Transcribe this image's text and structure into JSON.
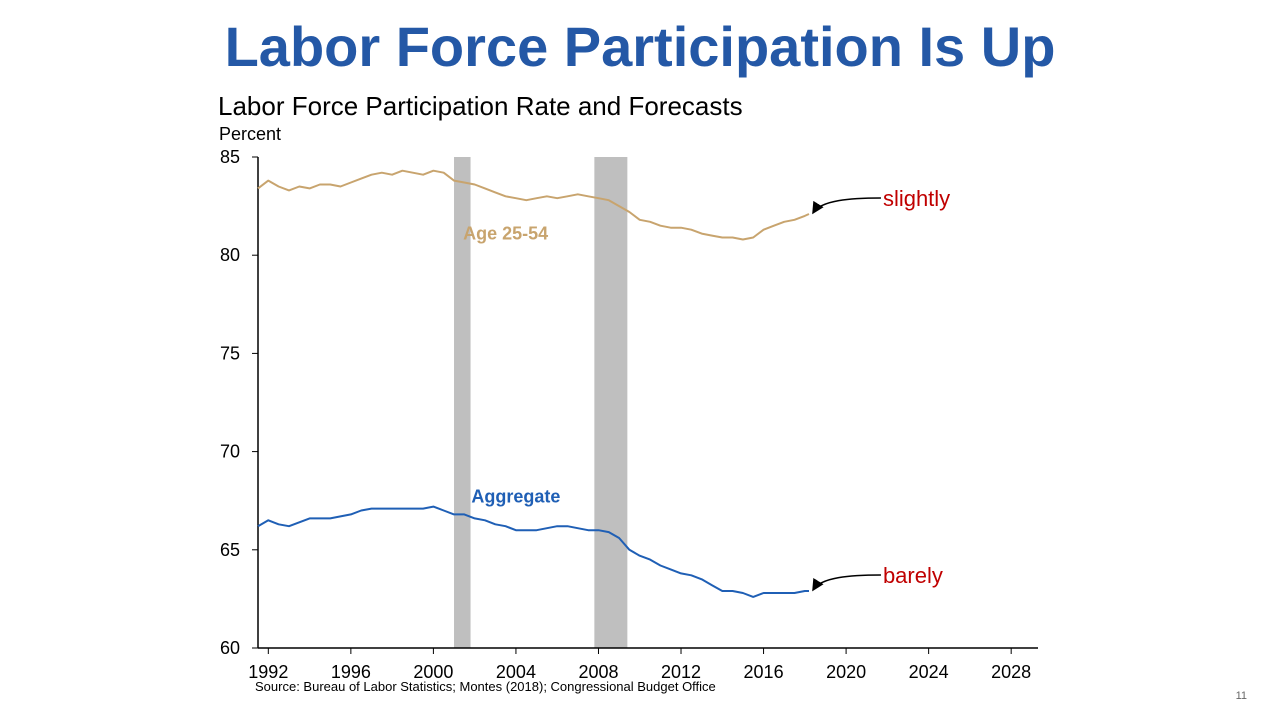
{
  "slide": {
    "title": "Labor Force Participation Is Up",
    "page_number": "11",
    "source": "Source: Bureau of Labor Statistics; Montes (2018); Congressional Budget Office"
  },
  "chart_data": {
    "type": "line",
    "title": "Labor Force Participation Rate and Forecasts",
    "ylabel": "Percent",
    "xlabel": "",
    "xlim": [
      1991.5,
      2029.3
    ],
    "ylim": [
      60,
      85
    ],
    "x_ticks": [
      1992,
      1996,
      2000,
      2004,
      2008,
      2012,
      2016,
      2020,
      2024,
      2028
    ],
    "y_ticks": [
      60,
      65,
      70,
      75,
      80,
      85
    ],
    "grid": false,
    "recessions": [
      [
        2001.0,
        2001.8
      ],
      [
        2007.8,
        2009.4
      ]
    ],
    "series": [
      {
        "name": "Age 25-54",
        "color": "#C8A46E",
        "x": [
          1991.5,
          1992.0,
          1992.5,
          1993.0,
          1993.5,
          1994.0,
          1994.5,
          1995.0,
          1995.5,
          1996.0,
          1996.5,
          1997.0,
          1997.5,
          1998.0,
          1998.5,
          1999.0,
          1999.5,
          2000.0,
          2000.5,
          2001.0,
          2001.5,
          2002.0,
          2002.5,
          2003.0,
          2003.5,
          2004.0,
          2004.5,
          2005.0,
          2005.5,
          2006.0,
          2006.5,
          2007.0,
          2007.5,
          2008.0,
          2008.5,
          2009.0,
          2009.5,
          2010.0,
          2010.5,
          2011.0,
          2011.5,
          2012.0,
          2012.5,
          2013.0,
          2013.5,
          2014.0,
          2014.5,
          2015.0,
          2015.5,
          2016.0,
          2016.5,
          2017.0,
          2017.5,
          2018.0,
          2018.2
        ],
        "values": [
          83.4,
          83.8,
          83.5,
          83.3,
          83.5,
          83.4,
          83.6,
          83.6,
          83.5,
          83.7,
          83.9,
          84.1,
          84.2,
          84.1,
          84.3,
          84.2,
          84.1,
          84.3,
          84.2,
          83.8,
          83.7,
          83.6,
          83.4,
          83.2,
          83.0,
          82.9,
          82.8,
          82.9,
          83.0,
          82.9,
          83.0,
          83.1,
          83.0,
          82.9,
          82.8,
          82.5,
          82.2,
          81.8,
          81.7,
          81.5,
          81.4,
          81.4,
          81.3,
          81.1,
          81.0,
          80.9,
          80.9,
          80.8,
          80.9,
          81.3,
          81.5,
          81.7,
          81.8,
          82.0,
          82.1
        ]
      },
      {
        "name": "Aggregate",
        "color": "#1F5FB5",
        "x": [
          1991.5,
          1992.0,
          1992.5,
          1993.0,
          1993.5,
          1994.0,
          1994.5,
          1995.0,
          1995.5,
          1996.0,
          1996.5,
          1997.0,
          1997.5,
          1998.0,
          1998.5,
          1999.0,
          1999.5,
          2000.0,
          2000.5,
          2001.0,
          2001.5,
          2002.0,
          2002.5,
          2003.0,
          2003.5,
          2004.0,
          2004.5,
          2005.0,
          2005.5,
          2006.0,
          2006.5,
          2007.0,
          2007.5,
          2008.0,
          2008.5,
          2009.0,
          2009.5,
          2010.0,
          2010.5,
          2011.0,
          2011.5,
          2012.0,
          2012.5,
          2013.0,
          2013.5,
          2014.0,
          2014.5,
          2015.0,
          2015.5,
          2016.0,
          2016.5,
          2017.0,
          2017.5,
          2018.0,
          2018.2
        ],
        "values": [
          66.2,
          66.5,
          66.3,
          66.2,
          66.4,
          66.6,
          66.6,
          66.6,
          66.7,
          66.8,
          67.0,
          67.1,
          67.1,
          67.1,
          67.1,
          67.1,
          67.1,
          67.2,
          67.0,
          66.8,
          66.8,
          66.6,
          66.5,
          66.3,
          66.2,
          66.0,
          66.0,
          66.0,
          66.1,
          66.2,
          66.2,
          66.1,
          66.0,
          66.0,
          65.9,
          65.6,
          65.0,
          64.7,
          64.5,
          64.2,
          64.0,
          63.8,
          63.7,
          63.5,
          63.2,
          62.9,
          62.9,
          62.8,
          62.6,
          62.8,
          62.8,
          62.8,
          62.8,
          62.9,
          62.9
        ]
      }
    ],
    "annotations": [
      {
        "text": "slightly",
        "target_series": "Age 25-54"
      },
      {
        "text": "barely",
        "target_series": "Aggregate"
      }
    ]
  }
}
